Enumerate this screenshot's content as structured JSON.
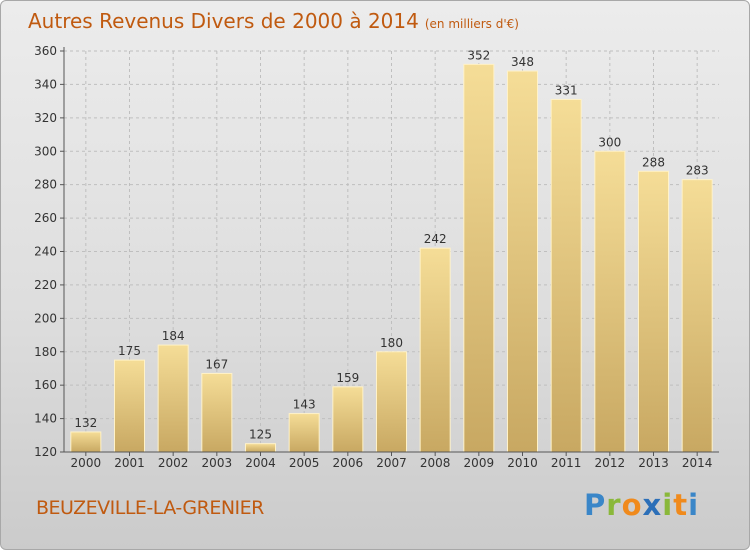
{
  "title": "Autres Revenus Divers de 2000 à 2014",
  "subtitle": "(en milliers d'€)",
  "commune": "BEUZEVILLE-LA-GRENIER",
  "logo": {
    "text": "Proxiti",
    "letters": [
      {
        "ch": "P",
        "color": "#3a86c8"
      },
      {
        "ch": "r",
        "color": "#8ab83a"
      },
      {
        "ch": "o",
        "color": "#f08a1c"
      },
      {
        "ch": "x",
        "color": "#2c6fb8"
      },
      {
        "ch": "i",
        "color": "#8ab83a"
      },
      {
        "ch": "t",
        "color": "#f08a1c"
      },
      {
        "ch": "i",
        "color": "#3a86c8"
      }
    ]
  },
  "colors": {
    "title": "#c05a10",
    "bar_light": "#f5dd97",
    "bar_dark": "#c8a862",
    "grid": "#bfbfbf"
  },
  "chart_data": {
    "type": "bar",
    "title": "Autres Revenus Divers de 2000 à 2014",
    "subtitle": "(en milliers d'€)",
    "xlabel": "",
    "ylabel": "",
    "categories": [
      "2000",
      "2001",
      "2002",
      "2003",
      "2004",
      "2005",
      "2006",
      "2007",
      "2008",
      "2009",
      "2010",
      "2011",
      "2012",
      "2013",
      "2014"
    ],
    "values": [
      132,
      175,
      184,
      167,
      125,
      143,
      159,
      180,
      242,
      352,
      348,
      331,
      300,
      288,
      283
    ],
    "ylim": [
      120,
      360
    ],
    "yticks": [
      120,
      140,
      160,
      180,
      200,
      220,
      240,
      260,
      280,
      300,
      320,
      340,
      360
    ],
    "grid": true,
    "legend": "none"
  }
}
